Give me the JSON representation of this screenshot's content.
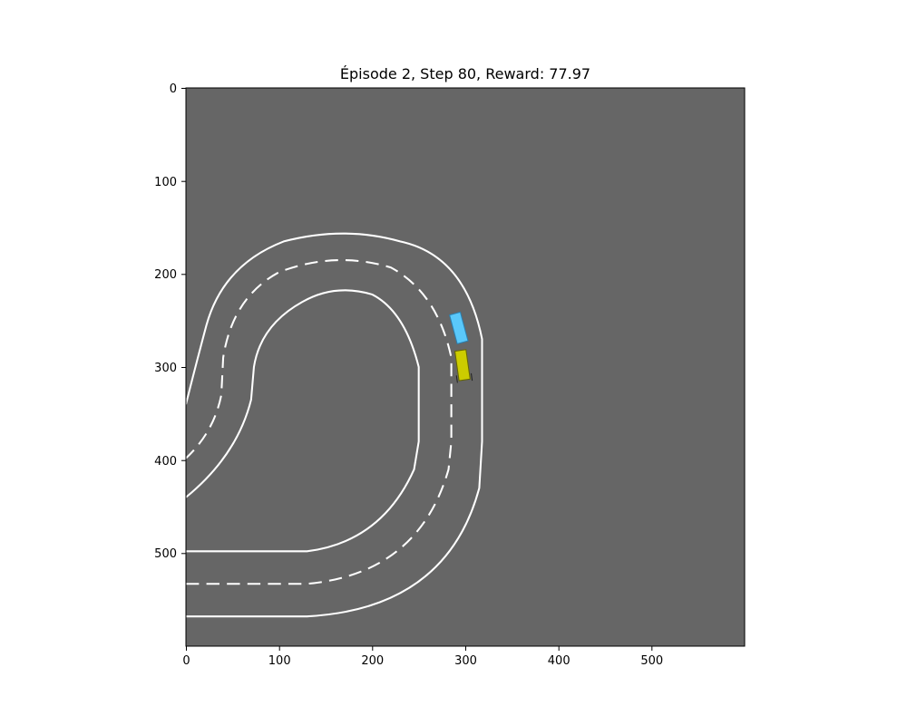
{
  "title": "Épisode 2, Step 80, Reward: 77.97",
  "colors": {
    "road": "#666666",
    "lane_line": "#ffffff",
    "agent_car": "#cccc00",
    "other_car": "#5ac8fa"
  },
  "axes": {
    "x_ticks": [
      "0",
      "100",
      "200",
      "300",
      "400",
      "500"
    ],
    "y_ticks": [
      "0",
      "100",
      "200",
      "300",
      "400",
      "500"
    ]
  }
}
